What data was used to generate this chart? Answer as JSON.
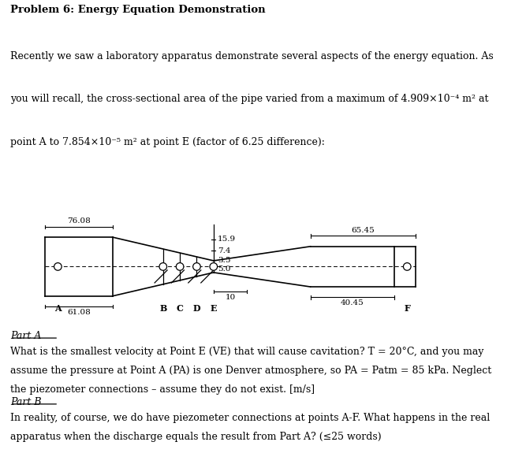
{
  "title": "Problem 6: Energy Equation Demonstration",
  "body_line1": "Recently we saw a laboratory apparatus demonstrate several aspects of the energy equation. As",
  "body_line2": "you will recall, the cross-sectional area of the pipe varied from a maximum of 4.909×10⁻⁴ m² at",
  "body_line3": "point A to 7.854×10⁻⁵ m² at point E (factor of 6.25 difference):",
  "dim_top_left": "76.08",
  "dim_top_right": "65.45",
  "dim_right_1": "15.9",
  "dim_right_2": "7.4",
  "dim_right_3": "3.5",
  "dim_right_4": "5.0",
  "dim_bot_left": "61.08",
  "dim_bot_right": "40.45",
  "dim_bot_center": "10",
  "part_a_label": "Part A",
  "part_a_line1": "What is the smallest velocity at Point E (VE) that will cause cavitation? T = 20°C, and you may",
  "part_a_line2": "assume the pressure at Point A (PA) is one Denver atmosphere, so PA = Patm = 85 kPa. Neglect",
  "part_a_line3": "the piezometer connections – assume they do not exist. [m/s]",
  "part_b_label": "Part B",
  "part_b_line1": "In reality, of course, we do have piezometer connections at points A-F. What happens in the real",
  "part_b_line2": "apparatus when the discharge equals the result from Part A? (≤25 words)",
  "lc": "#000000",
  "bg": "#ffffff"
}
